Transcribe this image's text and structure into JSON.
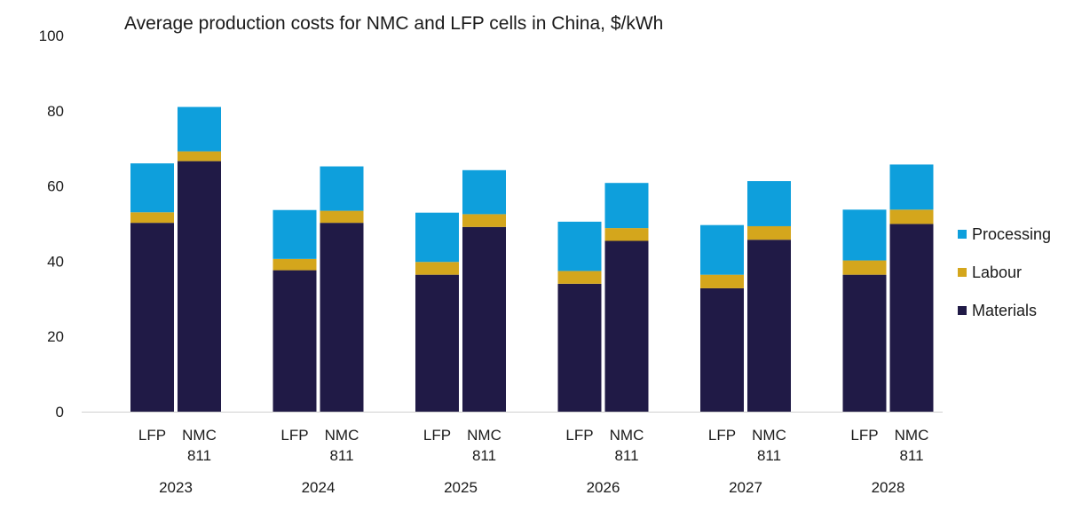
{
  "chart_data": {
    "type": "bar",
    "stacked": true,
    "title": "Average production costs for NMC and LFP cells in China, $/kWh",
    "xlabel": "",
    "ylabel": "",
    "ylim": [
      0,
      100
    ],
    "yticks": [
      "0",
      "20",
      "40",
      "60",
      "80",
      "100"
    ],
    "grid": false,
    "legend_position": "right",
    "groups": [
      "2023",
      "2024",
      "2025",
      "2026",
      "2027",
      "2028"
    ],
    "subcategories": [
      {
        "line1": "LFP",
        "line2": ""
      },
      {
        "line1": "NMC",
        "line2": "811"
      }
    ],
    "series": [
      {
        "name": "Materials",
        "color": "#201a46",
        "values": [
          [
            50.2,
            66.6
          ],
          [
            37.6,
            50.2
          ],
          [
            36.4,
            49.1
          ],
          [
            34.0,
            45.4
          ],
          [
            32.8,
            45.7
          ],
          [
            36.4,
            49.9
          ]
        ]
      },
      {
        "name": "Labour",
        "color": "#d4a61c",
        "values": [
          [
            2.8,
            2.6
          ],
          [
            3.0,
            3.2
          ],
          [
            3.4,
            3.4
          ],
          [
            3.4,
            3.4
          ],
          [
            3.6,
            3.6
          ],
          [
            3.8,
            3.8
          ]
        ]
      },
      {
        "name": "Processing",
        "color": "#0e9fdc",
        "values": [
          [
            13.0,
            11.8
          ],
          [
            13.0,
            11.8
          ],
          [
            13.1,
            11.7
          ],
          [
            13.1,
            12.0
          ],
          [
            13.2,
            12.0
          ],
          [
            13.5,
            12.0
          ]
        ]
      }
    ],
    "legend_order": [
      "Processing",
      "Labour",
      "Materials"
    ]
  }
}
